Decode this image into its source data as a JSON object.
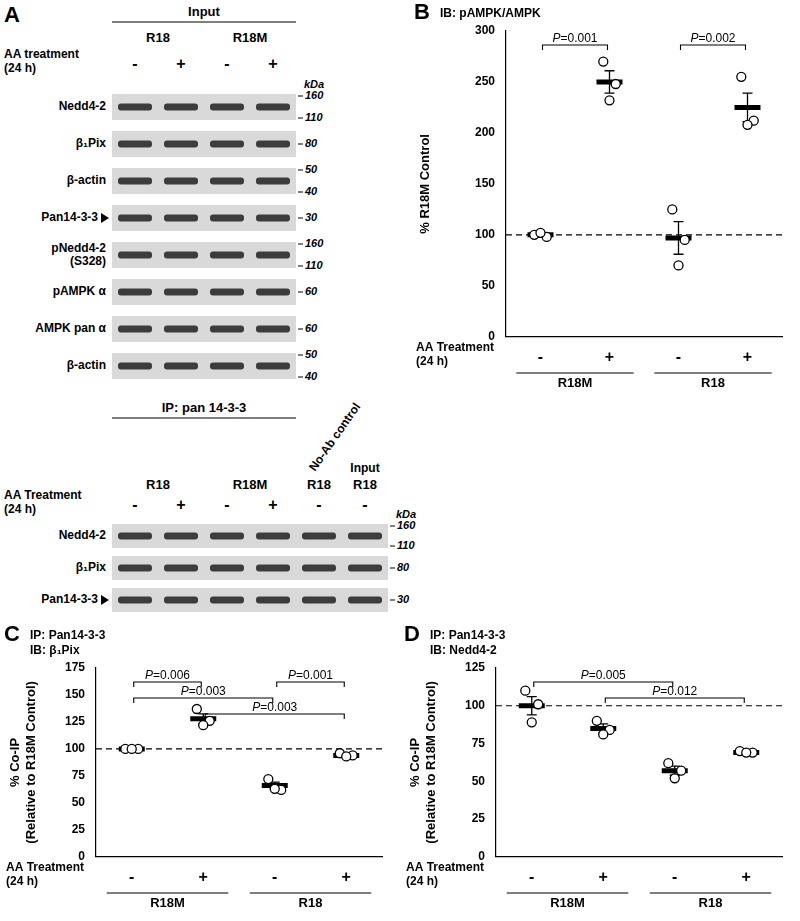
{
  "chart_data": [
    {
      "panel": "B",
      "type": "dot",
      "title": [
        "IB: pAMPK/AMPK"
      ],
      "y_label": [
        "% R18M Control"
      ],
      "x_label": "AA Treatment (24 h)",
      "categories": [
        "-",
        "+",
        "-",
        "+"
      ],
      "group_labels": [
        "R18M",
        "R18"
      ],
      "values": [
        100,
        250,
        97,
        225
      ],
      "errors": [
        2,
        11,
        16,
        14
      ],
      "points": [
        [
          100,
          98,
          102
        ],
        [
          270,
          248,
          232
        ],
        [
          125,
          95,
          70
        ],
        [
          255,
          212,
          208
        ]
      ],
      "color": "#000000",
      "ylim": [
        0,
        300
      ],
      "yticks": [
        0,
        50,
        100,
        150,
        200,
        250,
        300
      ],
      "grid": false,
      "hline": {
        "value": 100,
        "line_style": "dashed"
      },
      "annotations": [
        {
          "from": 0,
          "to": 1,
          "label": "P=0.001"
        },
        {
          "from": 2,
          "to": 3,
          "label": "P=0.002"
        }
      ]
    },
    {
      "panel": "C",
      "type": "dot",
      "title": [
        "IP: Pan14-3-3",
        "IB: β₁Pix"
      ],
      "y_label": [
        "% Co-IP",
        "(Relative to R18M Control)"
      ],
      "x_label": "AA Treatment (24 h)",
      "categories": [
        "-",
        "+",
        "-",
        "+"
      ],
      "group_labels": [
        "R18M",
        "R18"
      ],
      "values": [
        100,
        128,
        66,
        94
      ],
      "errors": [
        0.5,
        4.5,
        3.2,
        1
      ],
      "points": [
        [
          100,
          100,
          100
        ],
        [
          137,
          126,
          122
        ],
        [
          72,
          62,
          63
        ],
        [
          96,
          94,
          93
        ]
      ],
      "color": "#000000",
      "ylim": [
        0,
        175
      ],
      "yticks": [
        0,
        25,
        50,
        75,
        100,
        125,
        150,
        175
      ],
      "grid": false,
      "hline": {
        "value": 100,
        "line_style": "dashed"
      },
      "annotations": [
        {
          "from": 0,
          "to": 1,
          "label": "P=0.006"
        },
        {
          "from": 2,
          "to": 3,
          "label": "P=0.001"
        },
        {
          "from": 0,
          "to": 2,
          "label": "P=0.003"
        },
        {
          "from": 1,
          "to": 3,
          "label": "P=0.003"
        }
      ]
    },
    {
      "panel": "D",
      "type": "dot",
      "title": [
        "IP: Pan14-3-3",
        "IB: Nedd4-2"
      ],
      "y_label": [
        "% Co-IP",
        "(Relative to R18M Control)"
      ],
      "x_label": "AA Treatment (24 h)",
      "categories": [
        "-",
        "+",
        "-",
        "+"
      ],
      "group_labels": [
        "R18M",
        "R18"
      ],
      "values": [
        100,
        85,
        57,
        69
      ],
      "errors": [
        6,
        3,
        3,
        0.5
      ],
      "points": [
        [
          110,
          101,
          89
        ],
        [
          90,
          84,
          81
        ],
        [
          62,
          57,
          52
        ],
        [
          70,
          69,
          69
        ]
      ],
      "color": "#000000",
      "ylim": [
        0,
        125
      ],
      "yticks": [
        0,
        25,
        50,
        75,
        100,
        125
      ],
      "grid": false,
      "hline": {
        "value": 100,
        "line_style": "dashed"
      },
      "annotations": [
        {
          "from": 0,
          "to": 2,
          "label": "P=0.005"
        },
        {
          "from": 1,
          "to": 3,
          "label": "P=0.012"
        }
      ]
    }
  ],
  "blots": {
    "panel": "A",
    "unit": "kDa",
    "input": {
      "title": "Input",
      "groups": [
        {
          "name": "R18",
          "lanes": 2
        },
        {
          "name": "R18M",
          "lanes": 2
        }
      ],
      "row_label": "AA treatment (24 h)",
      "lanes": [
        "-",
        "+",
        "-",
        "+"
      ],
      "lane_titles": [],
      "rows": [
        {
          "label": "Nedd4-2",
          "markers": [
            160,
            110
          ]
        },
        {
          "label": "β₁Pix",
          "markers": [
            80
          ]
        },
        {
          "label": "β-actin",
          "markers": [
            50,
            40
          ]
        },
        {
          "label": "Pan14-3-3",
          "markers": [
            30
          ],
          "arrow": true
        },
        {
          "label": "pNedd4-2 (S328)",
          "markers": [
            160,
            110
          ]
        },
        {
          "label": "pAMPK α",
          "markers": [
            60
          ]
        },
        {
          "label": "AMPK pan α",
          "markers": [
            60
          ]
        },
        {
          "label": "β-actin",
          "markers": [
            50,
            40
          ]
        }
      ]
    },
    "ip": {
      "title": "IP: pan 14-3-3",
      "groups": [
        {
          "name": "R18",
          "lanes": 2
        },
        {
          "name": "R18M",
          "lanes": 2
        },
        {
          "name": "R18",
          "lanes": 1
        },
        {
          "name": "R18",
          "lanes": 1
        }
      ],
      "row_label": "AA Treatment (24 h)",
      "lanes": [
        "-",
        "+",
        "-",
        "+",
        "-",
        "-"
      ],
      "lane_titles": [
        "No-Ab control",
        "Input"
      ],
      "rows": [
        {
          "label": "Nedd4-2",
          "markers": [
            160,
            110
          ]
        },
        {
          "label": "β₁Pix",
          "markers": [
            80
          ]
        },
        {
          "label": "Pan14-3-3",
          "markers": [
            30
          ],
          "arrow": true
        }
      ]
    }
  }
}
